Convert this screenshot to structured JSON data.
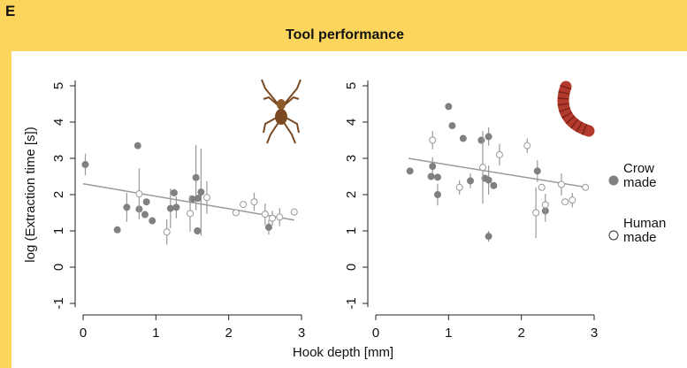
{
  "panel_label": "E",
  "title": "Tool performance",
  "xlabel": "Hook depth [mm]",
  "ylabel": "log (Extraction time [s])",
  "chart_data": [
    {
      "type": "scatter",
      "xlim": [
        0,
        3
      ],
      "ylim": [
        -1.1,
        5.15
      ],
      "xticks": [
        0,
        1,
        2,
        3
      ],
      "yticks": [
        -1,
        0,
        1,
        2,
        3,
        4,
        5
      ],
      "series": [
        {
          "name": "Crow made",
          "color": "#808080",
          "filled": true,
          "x": [
            0.03,
            0.47,
            0.6,
            0.75,
            0.77,
            0.85,
            0.87,
            0.95,
            1.2,
            1.25,
            1.28,
            1.5,
            1.55,
            1.57,
            1.58,
            1.62,
            2.55
          ],
          "values": [
            2.83,
            1.03,
            1.65,
            3.35,
            1.6,
            1.45,
            1.8,
            1.28,
            1.62,
            2.05,
            1.65,
            1.88,
            2.47,
            1.0,
            1.9,
            2.07,
            1.1
          ],
          "errors": [
            0.3,
            null,
            0.4,
            null,
            null,
            null,
            null,
            null,
            0.55,
            null,
            0.3,
            null,
            0.9,
            null,
            null,
            1.2,
            0.2
          ]
        },
        {
          "name": "Human made",
          "color": "#999999",
          "filled": false,
          "x": [
            0.77,
            1.15,
            1.47,
            1.7,
            2.1,
            2.2,
            2.35,
            2.5,
            2.6,
            2.7,
            2.9
          ],
          "values": [
            2.02,
            0.97,
            1.48,
            1.92,
            1.5,
            1.73,
            1.8,
            1.46,
            1.35,
            1.38,
            1.52
          ],
          "errors": [
            0.7,
            0.35,
            0.5,
            0.45,
            null,
            null,
            0.25,
            0.3,
            0.2,
            0.25,
            null
          ]
        }
      ],
      "trend": {
        "x": [
          0,
          2.9
        ],
        "y": [
          2.3,
          1.3
        ],
        "color": "#999999"
      }
    },
    {
      "type": "scatter",
      "xlim": [
        0,
        3
      ],
      "ylim": [
        -1.1,
        5.15
      ],
      "xticks": [
        0,
        1,
        2,
        3
      ],
      "yticks": [
        -1,
        0,
        1,
        2,
        3,
        4,
        5
      ],
      "series": [
        {
          "color": "#808080",
          "filled": true,
          "x": [
            0.47,
            0.78,
            0.76,
            0.85,
            0.85,
            1.0,
            1.05,
            1.2,
            1.3,
            1.45,
            1.5,
            1.55,
            1.55,
            1.55,
            1.62,
            2.22,
            2.33
          ],
          "values": [
            2.65,
            2.78,
            2.5,
            2.48,
            2.0,
            4.43,
            3.9,
            3.55,
            2.38,
            3.5,
            2.45,
            3.6,
            2.4,
            0.85,
            2.25,
            2.65,
            1.55
          ],
          "errors": [
            null,
            0.25,
            null,
            null,
            0.3,
            null,
            null,
            null,
            0.2,
            null,
            null,
            0.25,
            0.4,
            0.15,
            null,
            0.3,
            0.3
          ]
        },
        {
          "color": "#999999",
          "filled": false,
          "x": [
            0.78,
            1.15,
            1.47,
            1.7,
            2.08,
            2.2,
            2.28,
            2.33,
            2.55,
            2.6,
            2.7,
            2.88
          ],
          "values": [
            3.5,
            2.2,
            2.75,
            3.1,
            3.35,
            1.5,
            2.2,
            1.72,
            2.28,
            1.8,
            1.85,
            2.2
          ],
          "errors": [
            0.25,
            0.2,
            1.0,
            0.3,
            0.2,
            0.7,
            null,
            0.3,
            0.3,
            null,
            0.2,
            null
          ]
        }
      ],
      "trend": {
        "x": [
          0.45,
          2.9
        ],
        "y": [
          3.0,
          2.2
        ],
        "color": "#999999"
      }
    }
  ]
}
